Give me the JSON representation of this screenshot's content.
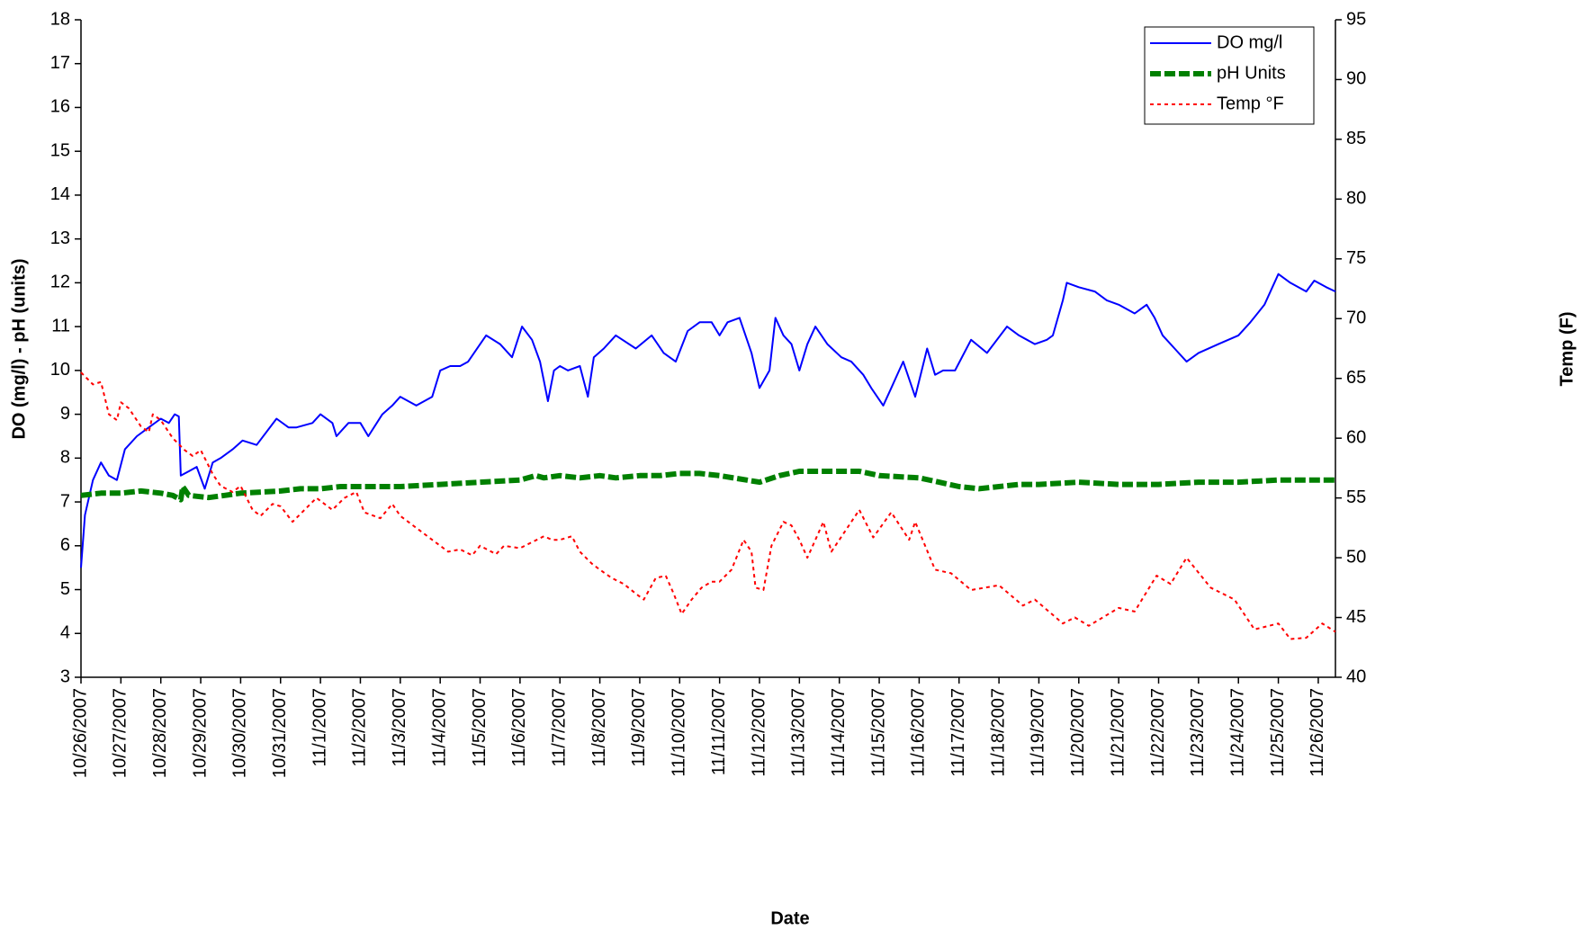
{
  "chart_data": {
    "type": "line",
    "x_label": "Date",
    "y_label": "DO (mg/l) - pH (units)",
    "y2_label": "Temp (F)",
    "xlim": [
      0,
      31.43
    ],
    "xticks": [
      {
        "value": 0,
        "label": "10/26/2007"
      },
      {
        "value": 1,
        "label": "10/27/2007"
      },
      {
        "value": 2,
        "label": "10/28/2007"
      },
      {
        "value": 3,
        "label": "10/29/2007"
      },
      {
        "value": 4,
        "label": "10/30/2007"
      },
      {
        "value": 5,
        "label": "10/31/2007"
      },
      {
        "value": 6,
        "label": "11/1/2007"
      },
      {
        "value": 7,
        "label": "11/2/2007"
      },
      {
        "value": 8,
        "label": "11/3/2007"
      },
      {
        "value": 9,
        "label": "11/4/2007"
      },
      {
        "value": 10,
        "label": "11/5/2007"
      },
      {
        "value": 11,
        "label": "11/6/2007"
      },
      {
        "value": 12,
        "label": "11/7/2007"
      },
      {
        "value": 13,
        "label": "11/8/2007"
      },
      {
        "value": 14,
        "label": "11/9/2007"
      },
      {
        "value": 15,
        "label": "11/10/2007"
      },
      {
        "value": 16,
        "label": "11/11/2007"
      },
      {
        "value": 17,
        "label": "11/12/2007"
      },
      {
        "value": 18,
        "label": "11/13/2007"
      },
      {
        "value": 19,
        "label": "11/14/2007"
      },
      {
        "value": 20,
        "label": "11/15/2007"
      },
      {
        "value": 21,
        "label": "11/16/2007"
      },
      {
        "value": 22,
        "label": "11/17/2007"
      },
      {
        "value": 23,
        "label": "11/18/2007"
      },
      {
        "value": 24,
        "label": "11/19/2007"
      },
      {
        "value": 25,
        "label": "11/20/2007"
      },
      {
        "value": 26,
        "label": "11/21/2007"
      },
      {
        "value": 27,
        "label": "11/22/2007"
      },
      {
        "value": 28,
        "label": "11/23/2007"
      },
      {
        "value": 29,
        "label": "11/24/2007"
      },
      {
        "value": 30,
        "label": "11/25/2007"
      },
      {
        "value": 31,
        "label": "11/26/2007"
      }
    ],
    "ylim": [
      3,
      18
    ],
    "yticks": [
      3,
      4,
      5,
      6,
      7,
      8,
      9,
      10,
      11,
      12,
      13,
      14,
      15,
      16,
      17,
      18
    ],
    "y2lim": [
      40,
      95
    ],
    "y2ticks": [
      40,
      45,
      50,
      55,
      60,
      65,
      70,
      75,
      80,
      85,
      90,
      95
    ],
    "legend": "upper right",
    "grid": false,
    "series": [
      {
        "name": "DO mg/l",
        "color": "#0000ff",
        "style": "solid",
        "x": [
          0,
          0.1,
          0.3,
          0.5,
          0.7,
          0.9,
          1.1,
          1.4,
          1.7,
          2.0,
          2.2,
          2.35,
          2.45,
          2.5,
          2.7,
          2.9,
          3.1,
          3.3,
          3.5,
          3.8,
          4.05,
          4.4,
          4.9,
          5.2,
          5.4,
          5.8,
          6.0,
          6.3,
          6.4,
          6.7,
          7.0,
          7.2,
          7.55,
          7.8,
          8.0,
          8.4,
          8.8,
          9.0,
          9.25,
          9.5,
          9.7,
          10.15,
          10.5,
          10.8,
          11.05,
          11.3,
          11.5,
          11.7,
          11.85,
          12.0,
          12.2,
          12.5,
          12.7,
          12.85,
          13.1,
          13.4,
          13.9,
          14.3,
          14.6,
          14.9,
          15.2,
          15.5,
          15.8,
          16.0,
          16.2,
          16.5,
          16.8,
          17.0,
          17.25,
          17.4,
          17.6,
          17.8,
          18.0,
          18.2,
          18.4,
          18.7,
          19.05,
          19.3,
          19.6,
          19.8,
          20.1,
          20.3,
          20.5,
          20.6,
          20.9,
          21.2,
          21.4,
          21.6,
          21.9,
          22.3,
          22.7,
          23.2,
          23.5,
          23.9,
          24.2,
          24.35,
          24.6,
          24.7,
          25.0,
          25.4,
          25.7,
          26.0,
          26.4,
          26.7,
          26.9,
          27.1,
          27.4,
          27.7,
          28.0,
          28.5,
          29.0,
          29.3,
          29.65,
          30.0,
          30.3,
          30.7,
          30.9,
          31.2,
          31.43
        ],
        "values": [
          5.5,
          6.7,
          7.5,
          7.9,
          7.6,
          7.5,
          8.2,
          8.5,
          8.7,
          8.9,
          8.8,
          9.0,
          8.95,
          7.6,
          7.7,
          7.8,
          7.3,
          7.9,
          8.0,
          8.2,
          8.4,
          8.3,
          8.9,
          8.7,
          8.7,
          8.8,
          9.0,
          8.8,
          8.5,
          8.8,
          8.8,
          8.5,
          9.0,
          9.2,
          9.4,
          9.2,
          9.4,
          10.0,
          10.1,
          10.1,
          10.2,
          10.8,
          10.6,
          10.3,
          11.0,
          10.7,
          10.2,
          9.3,
          10.0,
          10.1,
          10.0,
          10.1,
          9.4,
          10.3,
          10.5,
          10.8,
          10.5,
          10.8,
          10.4,
          10.2,
          10.9,
          11.1,
          11.1,
          10.8,
          11.1,
          11.2,
          10.4,
          9.6,
          10.0,
          11.2,
          10.8,
          10.6,
          10.0,
          10.6,
          11.0,
          10.6,
          10.3,
          10.2,
          9.9,
          9.6,
          9.2,
          9.6,
          10.0,
          10.2,
          9.4,
          10.5,
          9.9,
          10.0,
          10.0,
          10.7,
          10.4,
          11.0,
          10.8,
          10.6,
          10.7,
          10.8,
          11.6,
          12.0,
          11.9,
          11.8,
          11.6,
          11.5,
          11.3,
          11.5,
          11.2,
          10.8,
          10.5,
          10.2,
          10.4,
          10.6,
          10.8,
          11.1,
          11.5,
          12.2,
          12.0,
          11.8,
          12.05,
          11.9,
          11.8
        ]
      },
      {
        "name": "pH Units",
        "color": "#008000",
        "style": "dashed",
        "x": [
          0,
          0.5,
          1,
          1.5,
          2,
          2.3,
          2.5,
          2.55,
          2.7,
          3.2,
          3.6,
          4,
          5,
          5.5,
          6,
          6.5,
          7,
          7.5,
          8,
          9,
          10,
          11,
          11.4,
          11.6,
          12,
          12.5,
          13,
          13.4,
          14,
          14.5,
          15,
          15.5,
          16,
          17,
          17.5,
          18,
          19,
          19.5,
          20,
          21,
          21.5,
          22,
          22.5,
          23,
          23.5,
          24,
          25,
          26,
          27,
          28,
          29,
          30,
          31.43
        ],
        "values": [
          7.15,
          7.2,
          7.2,
          7.25,
          7.2,
          7.15,
          7.05,
          7.35,
          7.15,
          7.1,
          7.15,
          7.2,
          7.25,
          7.3,
          7.3,
          7.35,
          7.35,
          7.35,
          7.35,
          7.4,
          7.45,
          7.5,
          7.6,
          7.55,
          7.6,
          7.55,
          7.6,
          7.55,
          7.6,
          7.6,
          7.65,
          7.65,
          7.6,
          7.45,
          7.6,
          7.7,
          7.7,
          7.7,
          7.6,
          7.55,
          7.45,
          7.35,
          7.3,
          7.35,
          7.4,
          7.4,
          7.45,
          7.4,
          7.4,
          7.45,
          7.45,
          7.5,
          7.5
        ]
      },
      {
        "name": "Temp °F",
        "color": "#ff0000",
        "style": "dotted",
        "axis": "y2",
        "x": [
          0,
          0.3,
          0.5,
          0.7,
          0.9,
          1.0,
          1.2,
          1.5,
          1.7,
          1.8,
          2.0,
          2.3,
          2.6,
          2.8,
          3.0,
          3.3,
          3.5,
          3.8,
          4.0,
          4.3,
          4.5,
          4.8,
          5.0,
          5.3,
          5.6,
          5.9,
          6.1,
          6.3,
          6.6,
          6.9,
          7.1,
          7.5,
          7.8,
          8.0,
          8.4,
          8.8,
          9.0,
          9.2,
          9.5,
          9.8,
          10.0,
          10.4,
          10.6,
          11.0,
          11.3,
          11.6,
          11.8,
          12.0,
          12.3,
          12.5,
          12.8,
          13.0,
          13.3,
          13.6,
          13.9,
          14.1,
          14.4,
          14.65,
          14.85,
          15.05,
          15.3,
          15.55,
          15.8,
          16.0,
          16.3,
          16.6,
          16.8,
          16.9,
          17.1,
          17.3,
          17.6,
          17.8,
          18.0,
          18.2,
          18.4,
          18.6,
          18.8,
          19.0,
          19.5,
          19.85,
          20.3,
          20.75,
          20.9,
          21.4,
          21.8,
          22.3,
          23.0,
          23.6,
          23.9,
          24.6,
          24.9,
          25.25,
          26.0,
          26.4,
          26.95,
          27.3,
          27.7,
          28.3,
          28.9,
          29.4,
          30.0,
          30.3,
          30.7,
          31.1,
          31.43
        ],
        "values": [
          65.5,
          64.5,
          64.7,
          62,
          61.5,
          63,
          62.5,
          61,
          60.5,
          62,
          61.5,
          60,
          59,
          58.5,
          59,
          57,
          56,
          55.5,
          56,
          54,
          53.5,
          54.5,
          54.3,
          53,
          54,
          55,
          54.5,
          54,
          55,
          55.5,
          53.8,
          53.3,
          54.5,
          53.5,
          52.5,
          51.5,
          51,
          50.5,
          50.7,
          50.2,
          51,
          50.3,
          51,
          50.8,
          51.3,
          51.8,
          51.5,
          51.5,
          51.8,
          50.5,
          49.5,
          49,
          48.3,
          47.8,
          47,
          46.5,
          48.3,
          48.5,
          47,
          45.3,
          46.5,
          47.5,
          48,
          48,
          49,
          51.5,
          50.5,
          47.5,
          47.3,
          51,
          53,
          52.7,
          51.5,
          50,
          51.5,
          53,
          50.5,
          51.5,
          54,
          51.7,
          53.8,
          51.5,
          53,
          49,
          48.7,
          47.3,
          47.7,
          46,
          46.5,
          44.5,
          45,
          44.3,
          45.8,
          45.5,
          48.5,
          47.8,
          50,
          47.5,
          46.5,
          44,
          44.5,
          43.2,
          43.3,
          44.5,
          43.8
        ]
      }
    ]
  }
}
